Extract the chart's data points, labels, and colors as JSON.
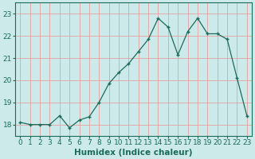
{
  "x": [
    0,
    1,
    2,
    3,
    4,
    5,
    6,
    7,
    8,
    9,
    10,
    11,
    12,
    13,
    14,
    15,
    16,
    17,
    18,
    19,
    20,
    21,
    22,
    23
  ],
  "y": [
    18.1,
    18.0,
    18.0,
    18.0,
    18.4,
    17.85,
    18.2,
    18.35,
    19.0,
    19.85,
    20.35,
    20.75,
    21.3,
    21.85,
    22.8,
    22.4,
    21.15,
    22.2,
    22.8,
    22.1,
    22.1,
    21.85,
    20.1,
    18.4
  ],
  "line_color": "#1a6b5a",
  "marker_color": "#1a6b5a",
  "bg_color": "#cdeaea",
  "grid_color": "#e8a0a0",
  "xlabel": "Humidex (Indice chaleur)",
  "ylim": [
    17.5,
    23.5
  ],
  "xlim": [
    -0.5,
    23.5
  ],
  "yticks": [
    18,
    19,
    20,
    21,
    22,
    23
  ],
  "xticks": [
    0,
    1,
    2,
    3,
    4,
    5,
    6,
    7,
    8,
    9,
    10,
    11,
    12,
    13,
    14,
    15,
    16,
    17,
    18,
    19,
    20,
    21,
    22,
    23
  ],
  "xtick_labels": [
    "0",
    "1",
    "2",
    "3",
    "4",
    "5",
    "6",
    "7",
    "8",
    "9",
    "10",
    "11",
    "12",
    "13",
    "14",
    "15",
    "16",
    "17",
    "18",
    "19",
    "20",
    "21",
    "22",
    "23"
  ],
  "xlabel_fontsize": 7.5,
  "tick_fontsize": 6.5
}
